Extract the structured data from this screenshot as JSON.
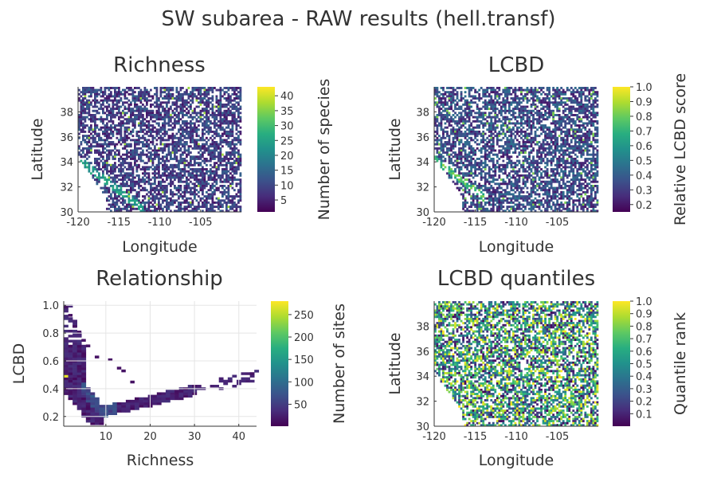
{
  "suptitle": "SW subarea - RAW results (hell.transf)",
  "chart_data": [
    {
      "type": "heatmap",
      "title": "Richness",
      "xlabel": "Longitude",
      "ylabel": "Latitude",
      "xlim": [
        -120,
        -100
      ],
      "ylim": [
        30,
        40
      ],
      "xticks": [
        "-120",
        "-115",
        "-110",
        "-105"
      ],
      "yticks": [
        "30",
        "32",
        "34",
        "36",
        "38"
      ],
      "colorbar": {
        "label": "Number of species",
        "min": 1,
        "max": 43,
        "ticks": [
          "5",
          "10",
          "15",
          "20",
          "25",
          "30",
          "35",
          "40"
        ]
      },
      "colorscale": "viridis",
      "grid": false
    },
    {
      "type": "heatmap",
      "title": "LCBD",
      "xlabel": "Longitude",
      "ylabel": "Latitude",
      "xlim": [
        -120,
        -100
      ],
      "ylim": [
        30,
        40
      ],
      "xticks": [
        "-120",
        "-115",
        "-110",
        "-105"
      ],
      "yticks": [
        "30",
        "32",
        "34",
        "36",
        "38"
      ],
      "colorbar": {
        "label": "Relative LCBD score",
        "min": 0.15,
        "max": 1.0,
        "ticks": [
          "0.2",
          "0.3",
          "0.4",
          "0.5",
          "0.6",
          "0.7",
          "0.8",
          "0.9",
          "1.0"
        ]
      },
      "colorscale": "viridis",
      "grid": false
    },
    {
      "type": "heatmap",
      "title": "Relationship",
      "xlabel": "Richness",
      "ylabel": "LCBD",
      "xlim": [
        0.5,
        44
      ],
      "ylim": [
        0.13,
        1.03
      ],
      "xticks": [
        "10",
        "20",
        "30",
        "40"
      ],
      "yticks": [
        "0.2",
        "0.4",
        "0.6",
        "0.8",
        "1.0"
      ],
      "colorbar": {
        "label": "Number of sites",
        "min": 1,
        "max": 280,
        "ticks": [
          "50",
          "100",
          "150",
          "200",
          "250"
        ]
      },
      "colorscale": "viridis",
      "grid": true
    },
    {
      "type": "heatmap",
      "title": "LCBD quantiles",
      "xlabel": "Longitude",
      "ylabel": "Latitude",
      "xlim": [
        -120,
        -100
      ],
      "ylim": [
        30,
        40
      ],
      "xticks": [
        "-120",
        "-115",
        "-110",
        "-105"
      ],
      "yticks": [
        "30",
        "32",
        "34",
        "36",
        "38"
      ],
      "colorbar": {
        "label": "Quantile rank",
        "min": 0,
        "max": 1.0,
        "ticks": [
          "0.1",
          "0.2",
          "0.3",
          "0.4",
          "0.5",
          "0.6",
          "0.7",
          "0.8",
          "0.9",
          "1.0"
        ]
      },
      "colorscale": "viridis",
      "grid": false
    }
  ]
}
